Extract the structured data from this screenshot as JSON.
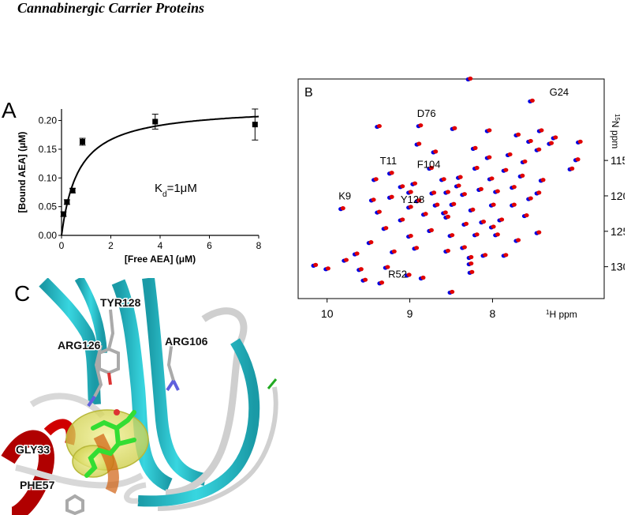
{
  "header": {
    "title": "Cannabinergic Carrier Proteins"
  },
  "panel_labels": {
    "a": "A",
    "b": "B",
    "c": "C"
  },
  "chart_data": [
    {
      "type": "scatter",
      "panel": "A",
      "xlabel": "[Free AEA] (μM)",
      "ylabel": "[Bound AEA] (μM)",
      "xlim": [
        0,
        8
      ],
      "ylim": [
        0,
        0.22
      ],
      "xticks": [
        0,
        2,
        4,
        6,
        8
      ],
      "yticks": [
        0.0,
        0.05,
        0.1,
        0.15,
        0.2
      ],
      "ytick_labels": [
        "0.00",
        "0.05",
        "0.10",
        "0.15",
        "0.20"
      ],
      "points": [
        {
          "x": 0.08,
          "y": 0.037,
          "err": 0.004
        },
        {
          "x": 0.22,
          "y": 0.058,
          "err": 0.004
        },
        {
          "x": 0.45,
          "y": 0.078,
          "err": 0.004
        },
        {
          "x": 0.85,
          "y": 0.163,
          "err": 0.006
        },
        {
          "x": 3.8,
          "y": 0.198,
          "err": 0.013
        },
        {
          "x": 7.85,
          "y": 0.193,
          "err": 0.027
        }
      ],
      "fit": {
        "bmax": 0.225,
        "kd": 0.7
      },
      "annotation": {
        "text_main": "K",
        "text_sub": "d",
        "text_rest": "=1μM"
      },
      "grid": false,
      "marker_color": "#000000"
    },
    {
      "type": "scatter",
      "panel": "B",
      "xlabel_super": "1",
      "xlabel_rest": "H ppm",
      "ylabel_super": "15",
      "ylabel_rest": "N ppm",
      "xlim": [
        10.35,
        6.65
      ],
      "ylim": [
        103.5,
        134.5
      ],
      "xticks": [
        10,
        9,
        8
      ],
      "yticks": [
        115,
        120,
        125,
        130
      ],
      "series": [
        {
          "color": "#0000e0"
        },
        {
          "color": "#e00000"
        }
      ],
      "labels": [
        {
          "text": "G24",
          "x": 7.35,
          "y": 106.5
        },
        {
          "text": "D76",
          "x": 8.95,
          "y": 109.5
        },
        {
          "text": "T11",
          "x": 9.4,
          "y": 116.2
        },
        {
          "text": "F104",
          "x": 8.95,
          "y": 116.7
        },
        {
          "text": "K9",
          "x": 9.9,
          "y": 121.2
        },
        {
          "text": "Y128",
          "x": 9.15,
          "y": 121.7
        },
        {
          "text": "R52",
          "x": 9.3,
          "y": 132.2
        }
      ],
      "peaks": [
        [
          8.28,
          103.5
        ],
        [
          7.53,
          106.6
        ],
        [
          8.88,
          110.1
        ],
        [
          9.38,
          110.2
        ],
        [
          8.47,
          110.5
        ],
        [
          8.05,
          110.8
        ],
        [
          7.55,
          112.3
        ],
        [
          7.25,
          111.8
        ],
        [
          7.42,
          110.8
        ],
        [
          7.7,
          111.4
        ],
        [
          7.45,
          113.5
        ],
        [
          7.3,
          112.6
        ],
        [
          8.05,
          114.6
        ],
        [
          6.95,
          112.4
        ],
        [
          6.98,
          114.9
        ],
        [
          7.05,
          116.2
        ],
        [
          8.75,
          116.1
        ],
        [
          8.2,
          116.1
        ],
        [
          9.23,
          116.8
        ],
        [
          9.42,
          117.7
        ],
        [
          8.95,
          118.3
        ],
        [
          8.6,
          117.7
        ],
        [
          8.4,
          117.4
        ],
        [
          8.02,
          117.6
        ],
        [
          7.85,
          116.4
        ],
        [
          7.65,
          117.2
        ],
        [
          7.4,
          117.8
        ],
        [
          7.75,
          118.8
        ],
        [
          7.45,
          119.6
        ],
        [
          7.95,
          119.4
        ],
        [
          8.15,
          119.1
        ],
        [
          8.35,
          119.8
        ],
        [
          8.55,
          119.5
        ],
        [
          8.72,
          119.6
        ],
        [
          9.0,
          119.5
        ],
        [
          9.23,
          120.2
        ],
        [
          9.45,
          120.6
        ],
        [
          9.82,
          121.8
        ],
        [
          9.38,
          122.3
        ],
        [
          9.0,
          121.6
        ],
        [
          8.68,
          121.3
        ],
        [
          8.48,
          121.2
        ],
        [
          8.25,
          122.0
        ],
        [
          8.0,
          121.3
        ],
        [
          7.75,
          121.3
        ],
        [
          7.6,
          122.8
        ],
        [
          7.9,
          123.4
        ],
        [
          8.12,
          123.7
        ],
        [
          8.33,
          124.0
        ],
        [
          8.55,
          123.0
        ],
        [
          8.82,
          122.6
        ],
        [
          9.1,
          123.4
        ],
        [
          9.3,
          124.6
        ],
        [
          9.0,
          125.7
        ],
        [
          8.75,
          124.9
        ],
        [
          8.5,
          125.6
        ],
        [
          8.2,
          125.5
        ],
        [
          7.95,
          125.5
        ],
        [
          7.7,
          126.3
        ],
        [
          7.45,
          125.2
        ],
        [
          9.48,
          126.6
        ],
        [
          9.65,
          128.2
        ],
        [
          9.2,
          127.9
        ],
        [
          8.93,
          127.4
        ],
        [
          8.55,
          127.8
        ],
        [
          8.35,
          127.3
        ],
        [
          8.27,
          128.7
        ],
        [
          8.27,
          129.6
        ],
        [
          8.1,
          128.4
        ],
        [
          7.85,
          128.4
        ],
        [
          9.78,
          129.1
        ],
        [
          10.15,
          129.8
        ],
        [
          10.0,
          130.3
        ],
        [
          9.6,
          130.4
        ],
        [
          9.28,
          130.1
        ],
        [
          9.02,
          131.2
        ],
        [
          8.85,
          131.6
        ],
        [
          8.26,
          130.8
        ],
        [
          9.55,
          131.9
        ],
        [
          9.35,
          132.3
        ],
        [
          8.5,
          133.6
        ],
        [
          8.58,
          122.4
        ],
        [
          8.9,
          120.7
        ],
        [
          8.0,
          124.4
        ],
        [
          7.55,
          120.4
        ],
        [
          8.42,
          118.6
        ],
        [
          9.1,
          118.7
        ],
        [
          8.7,
          113.8
        ],
        [
          7.8,
          114.2
        ],
        [
          7.62,
          115.2
        ],
        [
          8.22,
          113.3
        ],
        [
          8.9,
          112.7
        ]
      ],
      "grid": false
    }
  ],
  "structure_labels": {
    "tyr128": "TYR128",
    "arg126": "ARG126",
    "arg106": "ARG106",
    "gly33": "GLY33",
    "phe57": "PHE57"
  },
  "colors": {
    "helix_red": "#cc0000",
    "strand_cyan": "#26c3cf",
    "coil_white": "#d8d8d8",
    "ligand_green": "#33dd33",
    "surface_yellow": "#ecec6a"
  }
}
